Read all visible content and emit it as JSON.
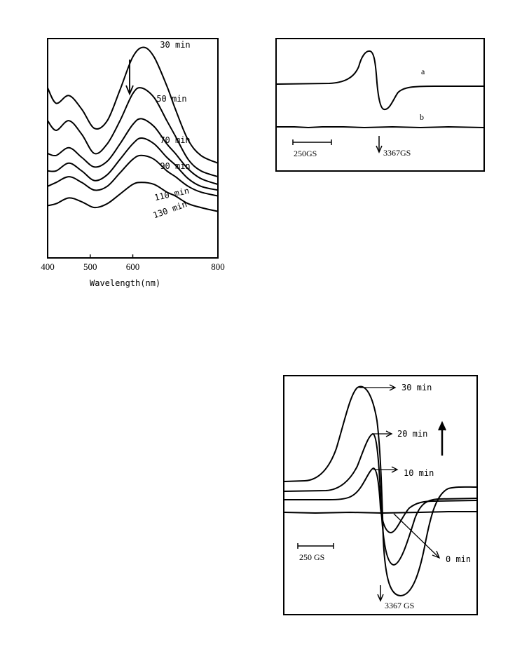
{
  "chart_data": [
    {
      "type": "line",
      "xlabel": "Wavelength(nm)",
      "ylabel": "",
      "xlim": [
        400,
        800
      ],
      "x_ticks": [
        "400",
        "500",
        "600",
        "800"
      ],
      "grid": false,
      "arrow_direction": "down",
      "series": [
        {
          "name": "30 min",
          "x": [
            400,
            420,
            450,
            480,
            510,
            540,
            570,
            600,
            625,
            650,
            680,
            700,
            730,
            760,
            800
          ],
          "y": [
            0.79,
            0.71,
            0.75,
            0.68,
            0.58,
            0.62,
            0.78,
            0.95,
            1.0,
            0.95,
            0.8,
            0.68,
            0.52,
            0.44,
            0.4
          ]
        },
        {
          "name": "50 min",
          "x": [
            400,
            420,
            450,
            480,
            510,
            540,
            570,
            600,
            620,
            650,
            680,
            700,
            730,
            760,
            800
          ],
          "y": [
            0.62,
            0.57,
            0.62,
            0.55,
            0.45,
            0.5,
            0.62,
            0.76,
            0.79,
            0.74,
            0.62,
            0.54,
            0.42,
            0.36,
            0.33
          ]
        },
        {
          "name": "70 min",
          "x": [
            400,
            420,
            450,
            480,
            510,
            540,
            570,
            600,
            620,
            650,
            680,
            700,
            730,
            760,
            800
          ],
          "y": [
            0.45,
            0.44,
            0.48,
            0.43,
            0.38,
            0.41,
            0.5,
            0.6,
            0.63,
            0.59,
            0.5,
            0.45,
            0.37,
            0.32,
            0.29
          ]
        },
        {
          "name": "90 min",
          "x": [
            400,
            420,
            450,
            480,
            510,
            540,
            570,
            600,
            620,
            650,
            680,
            700,
            730,
            760,
            800
          ],
          "y": [
            0.36,
            0.36,
            0.4,
            0.36,
            0.31,
            0.34,
            0.42,
            0.5,
            0.53,
            0.5,
            0.43,
            0.39,
            0.32,
            0.28,
            0.26
          ]
        },
        {
          "name": "110 min",
          "x": [
            400,
            420,
            450,
            480,
            510,
            540,
            570,
            600,
            620,
            650,
            680,
            700,
            730,
            760,
            800
          ],
          "y": [
            0.28,
            0.3,
            0.33,
            0.3,
            0.26,
            0.28,
            0.35,
            0.42,
            0.44,
            0.42,
            0.36,
            0.33,
            0.28,
            0.25,
            0.23
          ]
        },
        {
          "name": "130 min",
          "x": [
            400,
            420,
            450,
            480,
            510,
            540,
            570,
            600,
            620,
            650,
            680,
            700,
            730,
            760,
            800
          ],
          "y": [
            0.18,
            0.19,
            0.22,
            0.2,
            0.17,
            0.19,
            0.24,
            0.29,
            0.3,
            0.29,
            0.25,
            0.23,
            0.19,
            0.17,
            0.15
          ]
        }
      ]
    },
    {
      "type": "line",
      "xlabel": "",
      "ylabel": "",
      "grid": false,
      "scale_bar_label": "250GS",
      "field_marker_label": "3367GS",
      "series": [
        {
          "name": "a",
          "shape": "derivative",
          "baseline": 0,
          "max": 1.0,
          "min": -0.75
        },
        {
          "name": "b",
          "shape": "flat",
          "baseline": -1.3
        }
      ]
    },
    {
      "type": "line",
      "xlabel": "",
      "ylabel": "",
      "grid": false,
      "scale_bar_label": "250 GS",
      "field_marker_label": "3367 GS",
      "arrow_direction": "up",
      "series": [
        {
          "name": "30 min",
          "relative_amplitude": 1.0
        },
        {
          "name": "20 min",
          "relative_amplitude": 0.7
        },
        {
          "name": "10 min",
          "relative_amplitude": 0.45
        },
        {
          "name": "0 min",
          "relative_amplitude": 0.0
        }
      ]
    }
  ]
}
